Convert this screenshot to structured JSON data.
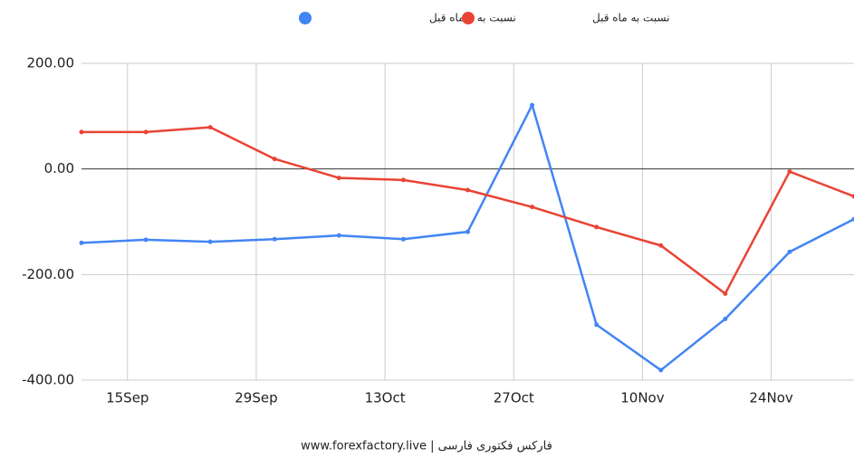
{
  "chart_data": {
    "type": "line",
    "x": [
      "10Sep",
      "17Sep",
      "24Sep",
      "1Oct",
      "8Oct",
      "15Oct",
      "22Oct",
      "29Oct",
      "5Nov",
      "12Nov",
      "19Nov",
      "26Nov",
      "3Dec"
    ],
    "series": [
      {
        "name": "نسبت به ۳ ماه قبل",
        "color": "#4285f4",
        "values": [
          -140,
          -134,
          -138,
          -133,
          -126,
          -133,
          -119,
          121,
          -295,
          -381,
          -284,
          -157,
          -95
        ]
      },
      {
        "name": "نسبت به ماه قبل",
        "color": "#ea4335",
        "values": [
          70,
          70,
          79,
          19,
          -17,
          -21,
          -40,
          -72,
          -110,
          -145,
          -236,
          -5,
          -52
        ]
      }
    ],
    "xlim": [
      "10Sep",
      "3Dec"
    ],
    "xticks": [
      "15Sep",
      "29Sep",
      "13Oct",
      "27Oct",
      "10Nov",
      "24Nov"
    ],
    "ylim": [
      -400,
      200
    ],
    "yticks": [
      {
        "value": -400,
        "label": "-400.00"
      },
      {
        "value": -200,
        "label": "-200.00"
      },
      {
        "value": 0,
        "label": "0.00"
      },
      {
        "value": 200,
        "label": "200.00"
      }
    ],
    "grid": true,
    "legend": "top",
    "footer": "www.forexfactory.live | فارکس فکتوری فارسی"
  }
}
